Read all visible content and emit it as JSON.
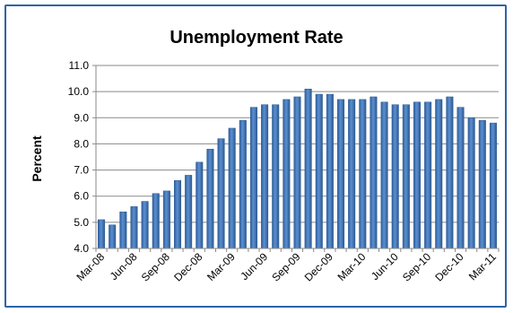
{
  "chart_data": {
    "type": "bar",
    "title": "Unemployment Rate",
    "xlabel": "",
    "ylabel": "Percent",
    "ylim": [
      4.0,
      11.0
    ],
    "yticks": [
      "4.0",
      "5.0",
      "6.0",
      "7.0",
      "8.0",
      "9.0",
      "10.0",
      "11.0"
    ],
    "grid": true,
    "legend": "none",
    "bar_color": "#3f73b8",
    "categories": [
      "Mar-08",
      "Apr-08",
      "May-08",
      "Jun-08",
      "Jul-08",
      "Aug-08",
      "Sep-08",
      "Oct-08",
      "Nov-08",
      "Dec-08",
      "Jan-09",
      "Feb-09",
      "Mar-09",
      "Apr-09",
      "May-09",
      "Jun-09",
      "Jul-09",
      "Aug-09",
      "Sep-09",
      "Oct-09",
      "Nov-09",
      "Dec-09",
      "Jan-10",
      "Feb-10",
      "Mar-10",
      "Apr-10",
      "May-10",
      "Jun-10",
      "Jul-10",
      "Aug-10",
      "Sep-10",
      "Oct-10",
      "Nov-10",
      "Dec-10",
      "Jan-11",
      "Feb-11",
      "Mar-11"
    ],
    "xtick_labels": [
      "Mar-08",
      "",
      "",
      "Jun-08",
      "",
      "",
      "Sep-08",
      "",
      "",
      "Dec-08",
      "",
      "",
      "Mar-09",
      "",
      "",
      "Jun-09",
      "",
      "",
      "Sep-09",
      "",
      "",
      "Dec-09",
      "",
      "",
      "Mar-10",
      "",
      "",
      "Jun-10",
      "",
      "",
      "Sep-10",
      "",
      "",
      "Dec-10",
      "",
      "",
      "Mar-11"
    ],
    "values": [
      5.1,
      4.9,
      5.4,
      5.6,
      5.8,
      6.1,
      6.2,
      6.6,
      6.8,
      7.3,
      7.8,
      8.2,
      8.6,
      8.9,
      9.4,
      9.5,
      9.5,
      9.7,
      9.8,
      10.1,
      9.9,
      9.9,
      9.7,
      9.7,
      9.7,
      9.8,
      9.6,
      9.5,
      9.5,
      9.6,
      9.6,
      9.7,
      9.8,
      9.4,
      9.0,
      8.9,
      8.8
    ]
  }
}
